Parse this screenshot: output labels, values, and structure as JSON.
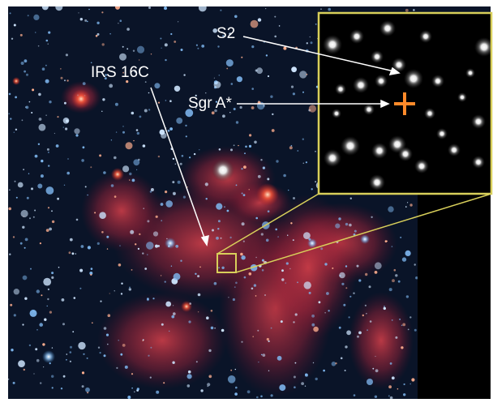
{
  "labels": {
    "s2": "S2",
    "irs16c": "IRS 16C",
    "sgra": "Sgr A*"
  }
}
